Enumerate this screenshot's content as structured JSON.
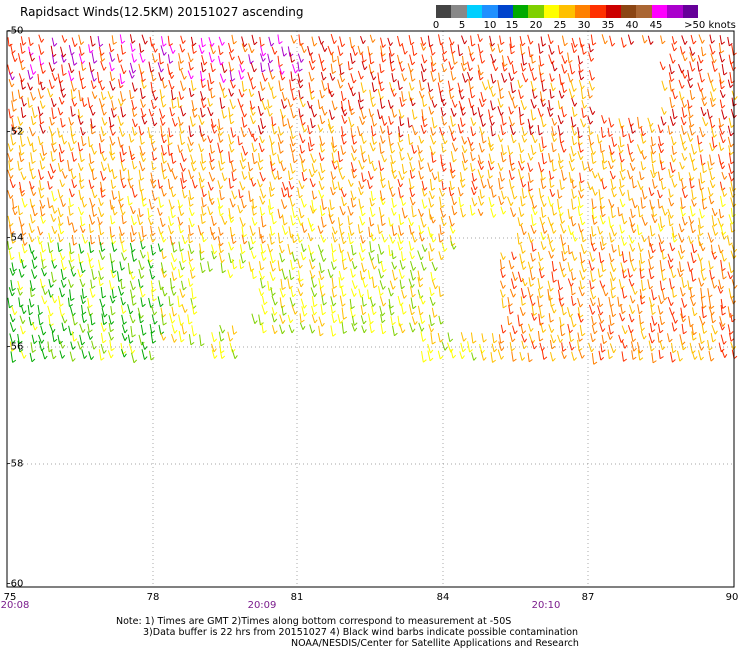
{
  "title": "Rapidsact Winds(12.5KM) 20151027 ascending",
  "colorbar": {
    "colors": [
      "#444444",
      "#888888",
      "#00cfff",
      "#1f90ff",
      "#0044cc",
      "#00aa00",
      "#7fd000",
      "#ffff00",
      "#ffc000",
      "#ff8000",
      "#ff3000",
      "#cc0000",
      "#8b4513",
      "#aa6633",
      "#ff00ff",
      "#aa00cc",
      "#660099"
    ],
    "labels": [
      "0",
      "5",
      "10",
      "15",
      "20",
      "25",
      "30",
      "35",
      "40",
      "45",
      ">50 knots"
    ]
  },
  "map": {
    "lat_labels": [
      "-50",
      "-52",
      "-54",
      "-56",
      "-58",
      "-60"
    ],
    "lon_labels": [
      "75",
      "78",
      "81",
      "84",
      "87",
      "90"
    ],
    "time_labels": [
      "20:08",
      "20:09",
      "20:10"
    ]
  },
  "notes": {
    "line1": "Note: 1) Times are GMT 2)Times along bottom correspond to measurement at -50S",
    "line2": "3)Data buffer is 22 hrs from 20151027 4) Black wind barbs indicate possible contamination",
    "line3": "NOAA/NESDIS/Center for Satellite Applications and Research"
  }
}
